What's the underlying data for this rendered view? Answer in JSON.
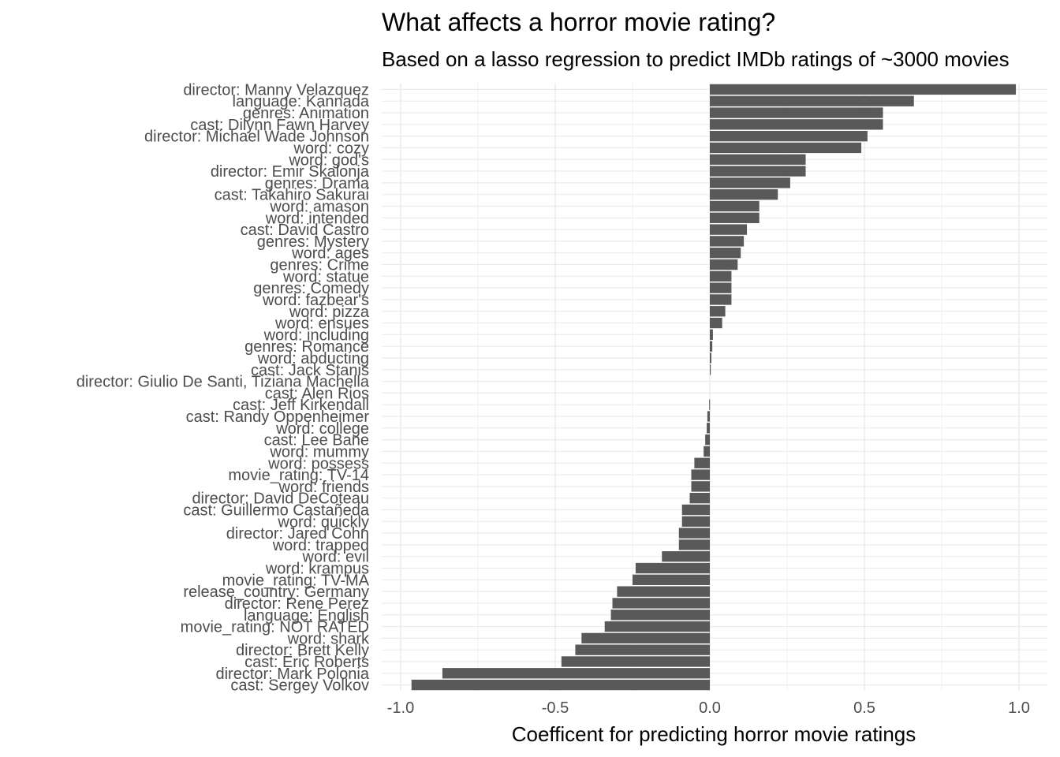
{
  "chart_data": {
    "type": "bar",
    "orientation": "horizontal",
    "title": "What affects a horror movie rating?",
    "subtitle": "Based on a lasso regression to predict IMDb ratings of ~3000 movies",
    "xlabel": "Coefficent for predicting horror movie ratings",
    "ylabel": "",
    "xlim": [
      -1.0,
      1.0
    ],
    "xticks": [
      -1.0,
      -0.5,
      0.0,
      0.5,
      1.0
    ],
    "xtick_labels": [
      "-1.0",
      "-0.5",
      "0.0",
      "0.5",
      "1.0"
    ],
    "grid": true,
    "bar_color": "#595959",
    "categories": [
      "director: Manny Velazquez",
      "language: Kannada",
      "genres: Animation",
      "cast: Dilynn Fawn Harvey",
      "director: Michael Wade Johnson",
      "word: cozy",
      "word: god's",
      "director: Emir Skalonja",
      "genres: Drama",
      "cast: Takahiro Sakurai",
      "word: amason",
      "word: intended",
      "cast: David Castro",
      "genres: Mystery",
      "word: ages",
      "genres: Crime",
      "word: statue",
      "genres: Comedy",
      "word: fazbear's",
      "word: pizza",
      "word: ensues",
      "word: including",
      "genres: Romance",
      "word: abducting",
      "cast: Jack Stanis",
      "director: Giulio De Santi, Tiziana Machella",
      "cast: Alen Rios",
      "cast: Jeff Kirkendall",
      "cast: Randy Oppenheimer",
      "word: college",
      "cast: Lee Bane",
      "word: mummy",
      "word: possess",
      "movie_rating: TV-14",
      "word: friends",
      "director: David DeCoteau",
      "cast: Guillermo Castañeda",
      "word: quickly",
      "director: Jared Cohn",
      "word: trapped",
      "word: evil",
      "word: krampus",
      "movie_rating: TV-MA",
      "release_country: Germany",
      "director: Rene Perez",
      "language: English",
      "movie_rating: NOT RATED",
      "word: shark",
      "director: Brett Kelly",
      "cast: Eric Roberts",
      "director: Mark Polonia",
      "cast: Sergey Volkov"
    ],
    "values": [
      0.99,
      0.66,
      0.56,
      0.56,
      0.51,
      0.49,
      0.31,
      0.31,
      0.26,
      0.22,
      0.16,
      0.16,
      0.12,
      0.11,
      0.1,
      0.09,
      0.07,
      0.07,
      0.07,
      0.05,
      0.04,
      0.01,
      0.008,
      0.005,
      0.003,
      0.0,
      0.0,
      -0.002,
      -0.008,
      -0.01,
      -0.015,
      -0.02,
      -0.05,
      -0.06,
      -0.06,
      -0.065,
      -0.09,
      -0.09,
      -0.1,
      -0.1,
      -0.155,
      -0.24,
      -0.25,
      -0.3,
      -0.315,
      -0.32,
      -0.34,
      -0.415,
      -0.435,
      -0.48,
      -0.865,
      -0.965
    ]
  }
}
